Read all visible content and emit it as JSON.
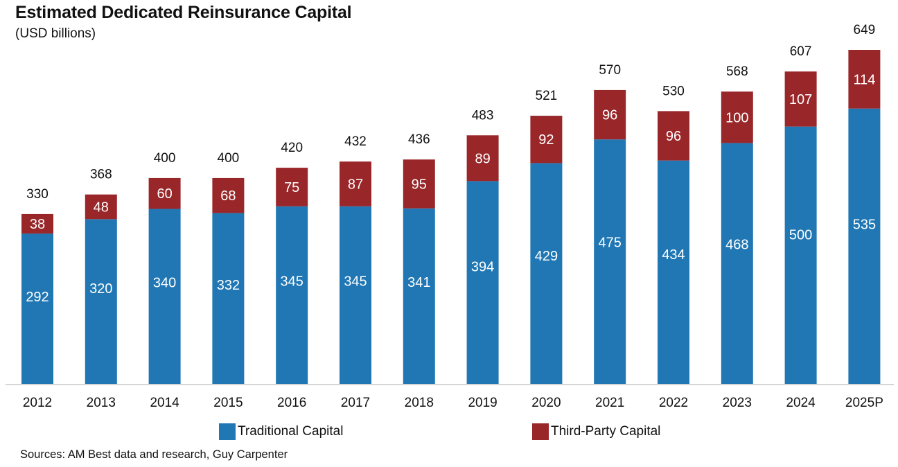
{
  "chart_data": {
    "type": "bar",
    "stacked": true,
    "title": "Estimated Dedicated Reinsurance Capital",
    "subtitle": "(USD billions)",
    "xlabel": "",
    "ylabel": "",
    "ylim": [
      0,
      650
    ],
    "grid": false,
    "categories": [
      "2012",
      "2013",
      "2014",
      "2015",
      "2016",
      "2017",
      "2018",
      "2019",
      "2020",
      "2021",
      "2022",
      "2023",
      "2024",
      "2025P"
    ],
    "series": [
      {
        "name": "Traditional Capital",
        "color": "#2077b4",
        "values": [
          292,
          320,
          340,
          332,
          345,
          345,
          341,
          394,
          429,
          475,
          434,
          468,
          500,
          535
        ]
      },
      {
        "name": "Third-Party Capital",
        "color": "#99272a",
        "values": [
          38,
          48,
          60,
          68,
          75,
          87,
          95,
          89,
          92,
          96,
          96,
          100,
          107,
          114
        ]
      }
    ],
    "totals": [
      330,
      368,
      400,
      400,
      420,
      432,
      436,
      483,
      521,
      570,
      530,
      568,
      607,
      649
    ],
    "legend_position": "bottom",
    "source": "Sources: AM Best data and research, Guy Carpenter"
  }
}
